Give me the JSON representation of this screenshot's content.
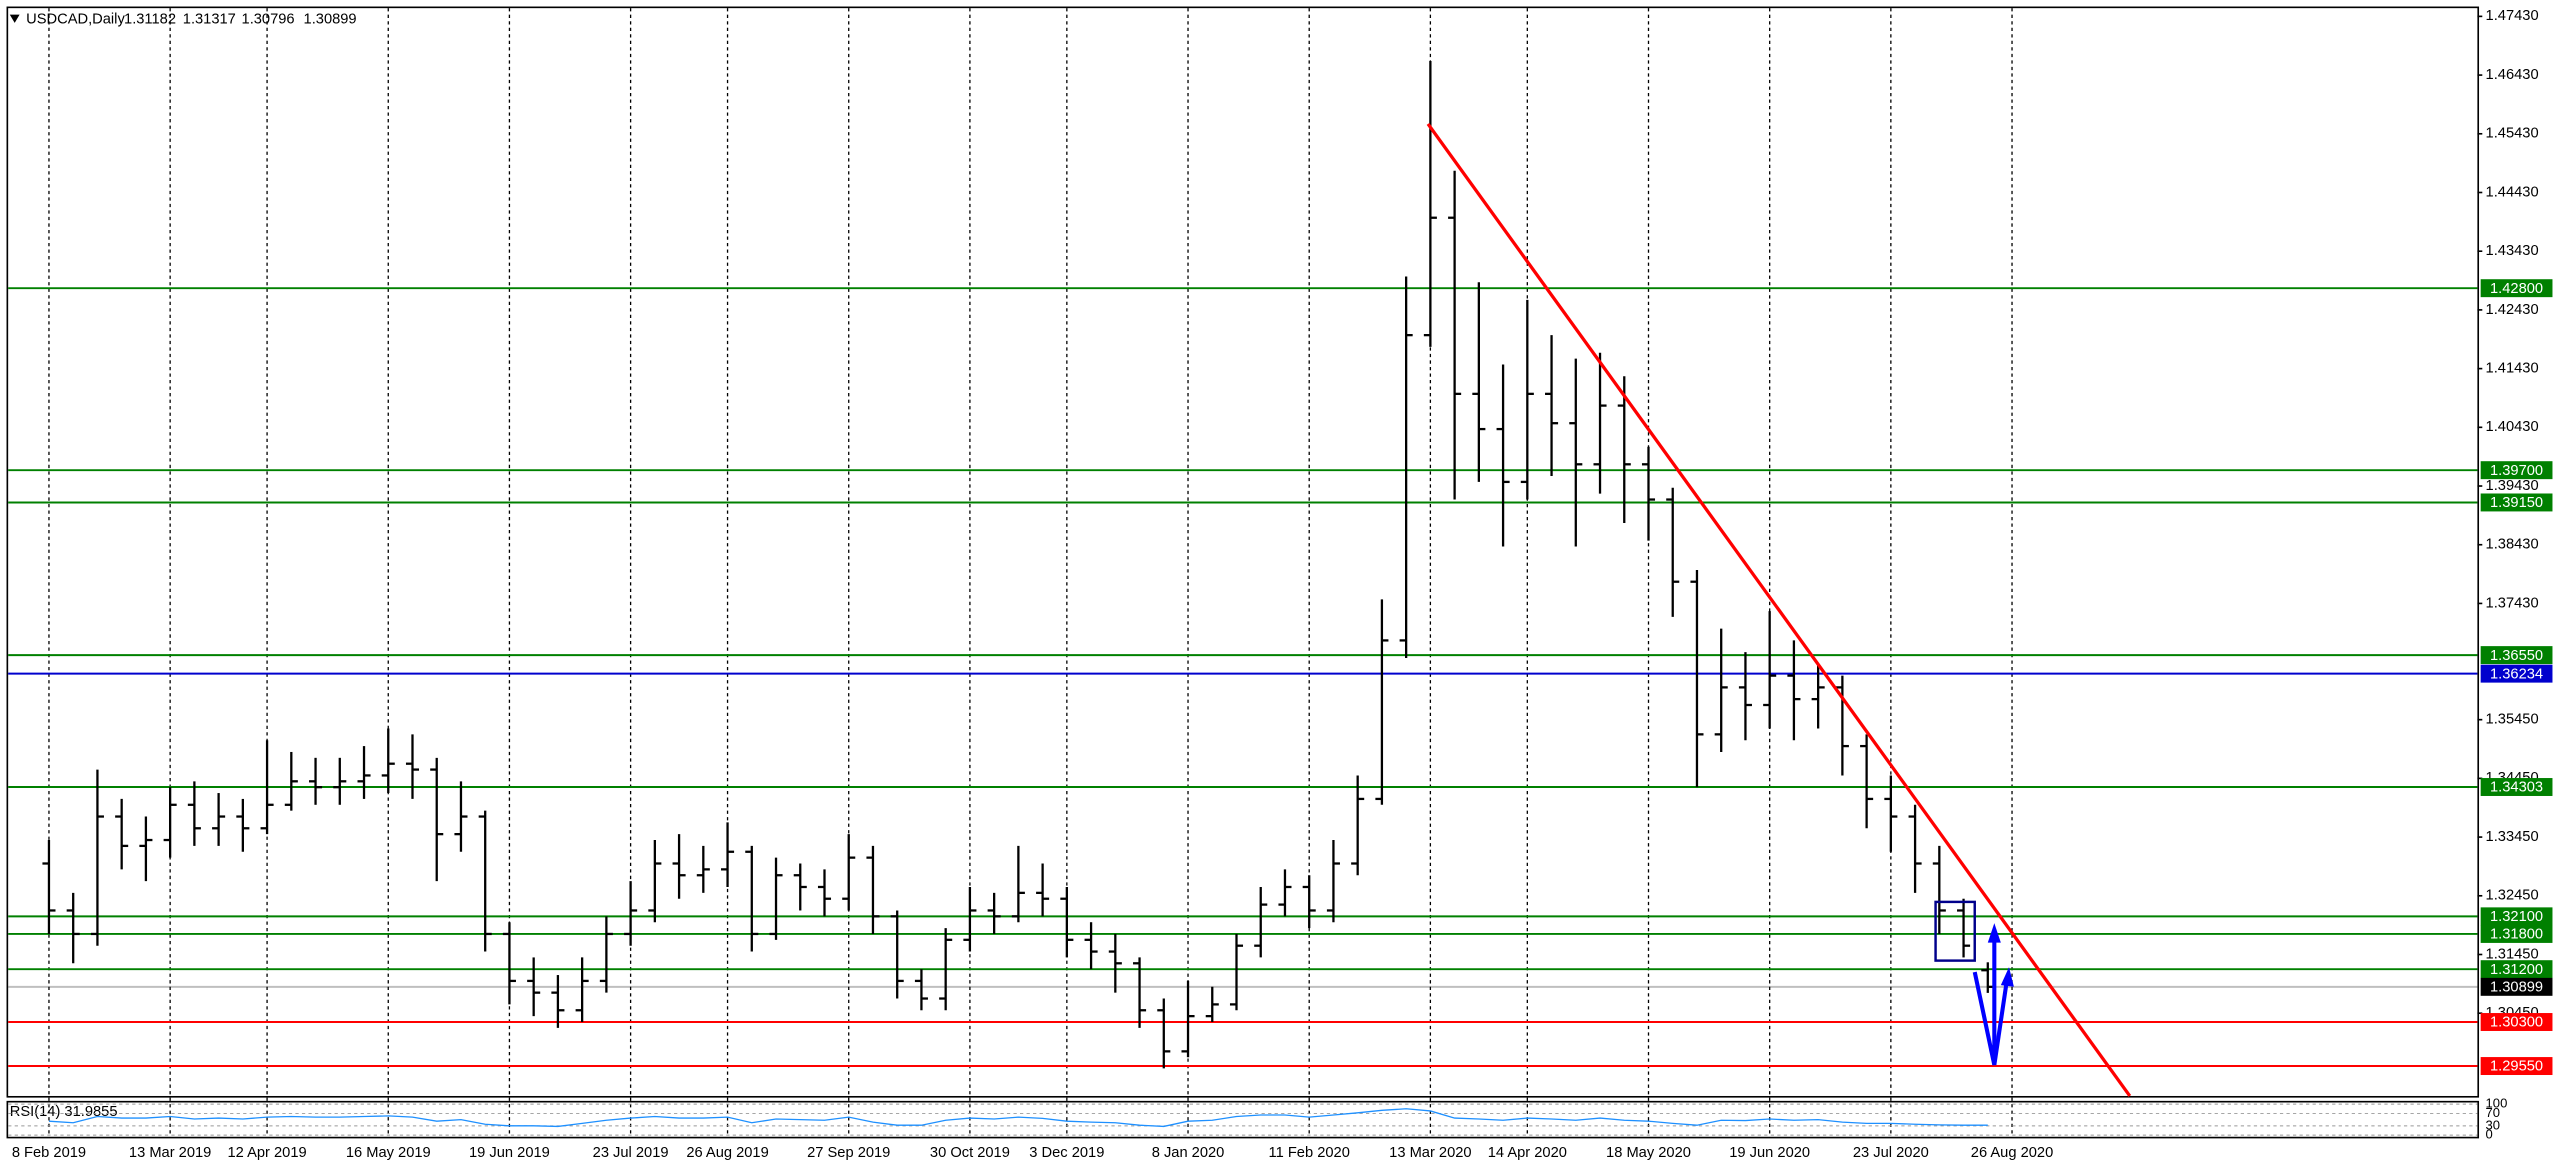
{
  "chart_data": {
    "type": "ohlc",
    "title": "USDCAD,Daily",
    "quote": [
      1.31182,
      1.31317,
      1.30796,
      1.30899
    ],
    "categories": [
      "8 Feb 2019",
      null,
      null,
      null,
      null,
      "13 Mar 2019",
      null,
      null,
      null,
      "12 Apr 2019",
      null,
      null,
      null,
      null,
      "16 May 2019",
      null,
      null,
      null,
      null,
      "19 Jun 2019",
      null,
      null,
      null,
      null,
      "23 Jul 2019",
      null,
      null,
      null,
      "26 Aug 2019",
      null,
      null,
      null,
      null,
      "27 Sep 2019",
      null,
      null,
      null,
      null,
      "30 Oct 2019",
      null,
      null,
      null,
      "3 Dec 2019",
      null,
      null,
      null,
      null,
      "8 Jan 2020",
      null,
      null,
      null,
      null,
      "11 Feb 2020",
      null,
      null,
      null,
      null,
      "13 Mar 2020",
      null,
      null,
      null,
      "14 Apr 2020",
      null,
      null,
      null,
      null,
      "18 May 2020",
      null,
      null,
      null,
      null,
      "19 Jun 2020",
      null,
      null,
      null,
      null,
      "23 Jul 2020",
      null,
      null,
      null,
      null,
      "26 Aug 2020"
    ],
    "open": [
      1.33,
      1.322,
      1.318,
      1.338,
      1.333,
      1.334,
      1.34,
      1.336,
      1.338,
      1.336,
      1.34,
      1.344,
      1.343,
      1.344,
      1.345,
      1.347,
      1.346,
      1.335,
      1.338,
      1.318,
      1.31,
      1.308,
      1.305,
      1.31,
      1.318,
      1.322,
      1.33,
      1.328,
      1.329,
      1.332,
      1.318,
      1.328,
      1.326,
      1.324,
      1.331,
      1.321,
      1.31,
      1.307,
      1.317,
      1.322,
      1.321,
      1.325,
      1.324,
      1.317,
      1.315,
      1.313,
      1.305,
      1.298,
      1.304,
      1.306,
      1.316,
      1.323,
      1.326,
      1.322,
      1.33,
      1.341,
      1.368,
      1.42,
      1.44,
      1.41,
      1.404,
      1.395,
      1.41,
      1.405,
      1.398,
      1.408,
      1.398,
      1.392,
      1.378,
      1.352,
      1.36,
      1.357,
      1.362,
      1.358,
      1.36,
      1.35,
      1.341,
      1.338,
      1.33,
      1.322,
      1.31182,
      null
    ],
    "high": [
      1.334,
      1.325,
      1.346,
      1.341,
      1.338,
      1.343,
      1.344,
      1.342,
      1.341,
      1.351,
      1.349,
      1.348,
      1.348,
      1.35,
      1.353,
      1.352,
      1.348,
      1.344,
      1.339,
      1.32,
      1.314,
      1.311,
      1.314,
      1.321,
      1.327,
      1.334,
      1.335,
      1.333,
      1.337,
      1.333,
      1.331,
      1.33,
      1.329,
      1.335,
      1.333,
      1.322,
      1.312,
      1.319,
      1.326,
      1.325,
      1.333,
      1.33,
      1.326,
      1.32,
      1.318,
      1.314,
      1.307,
      1.31,
      1.309,
      1.318,
      1.326,
      1.329,
      1.328,
      1.334,
      1.345,
      1.375,
      1.43,
      1.4667,
      1.448,
      1.429,
      1.415,
      1.426,
      1.42,
      1.416,
      1.417,
      1.413,
      1.401,
      1.394,
      1.38,
      1.37,
      1.366,
      1.373,
      1.368,
      1.364,
      1.362,
      1.352,
      1.345,
      1.34,
      1.333,
      1.324,
      1.31317,
      null
    ],
    "low": [
      1.318,
      1.313,
      1.316,
      1.329,
      1.327,
      1.331,
      1.333,
      1.333,
      1.332,
      1.335,
      1.339,
      1.34,
      1.34,
      1.341,
      1.342,
      1.341,
      1.327,
      1.332,
      1.315,
      1.306,
      1.304,
      1.302,
      1.303,
      1.308,
      1.316,
      1.32,
      1.324,
      1.325,
      1.326,
      1.315,
      1.317,
      1.322,
      1.321,
      1.322,
      1.318,
      1.307,
      1.305,
      1.305,
      1.315,
      1.318,
      1.32,
      1.321,
      1.314,
      1.312,
      1.308,
      1.302,
      1.2951,
      1.297,
      1.303,
      1.305,
      1.314,
      1.321,
      1.319,
      1.32,
      1.328,
      1.34,
      1.365,
      1.418,
      1.392,
      1.395,
      1.384,
      1.392,
      1.396,
      1.384,
      1.393,
      1.388,
      1.385,
      1.372,
      1.343,
      1.349,
      1.351,
      1.353,
      1.351,
      1.353,
      1.345,
      1.336,
      1.332,
      1.325,
      1.318,
      1.314,
      1.30796,
      null
    ],
    "close": [
      1.322,
      1.318,
      1.338,
      1.333,
      1.334,
      1.34,
      1.336,
      1.338,
      1.336,
      1.34,
      1.344,
      1.343,
      1.344,
      1.345,
      1.347,
      1.346,
      1.335,
      1.338,
      1.318,
      1.31,
      1.308,
      1.305,
      1.31,
      1.318,
      1.322,
      1.33,
      1.328,
      1.329,
      1.332,
      1.318,
      1.328,
      1.326,
      1.324,
      1.331,
      1.321,
      1.31,
      1.307,
      1.317,
      1.322,
      1.321,
      1.325,
      1.324,
      1.317,
      1.315,
      1.313,
      1.305,
      1.298,
      1.304,
      1.306,
      1.316,
      1.323,
      1.326,
      1.322,
      1.33,
      1.341,
      1.368,
      1.42,
      1.44,
      1.41,
      1.404,
      1.395,
      1.41,
      1.405,
      1.398,
      1.408,
      1.398,
      1.392,
      1.378,
      1.352,
      1.36,
      1.357,
      1.362,
      1.358,
      1.36,
      1.35,
      1.341,
      1.338,
      1.33,
      1.322,
      1.316,
      1.30899,
      null
    ],
    "color": "#000000",
    "ylim": [
      1.2904,
      1.4757
    ],
    "yticks": [
      {
        "value": 1.4743,
        "label": "1.47430"
      },
      {
        "value": 1.4643,
        "label": "1.46430"
      },
      {
        "value": 1.4543,
        "label": "1.45430"
      },
      {
        "value": 1.4443,
        "label": "1.44430"
      },
      {
        "value": 1.4343,
        "label": "1.43430"
      },
      {
        "value": 1.4243,
        "label": "1.42430"
      },
      {
        "value": 1.4143,
        "label": "1.41430"
      },
      {
        "value": 1.4043,
        "label": "1.40430"
      },
      {
        "value": 1.3943,
        "label": "1.39430"
      },
      {
        "value": 1.3843,
        "label": "1.38430"
      },
      {
        "value": 1.3743,
        "label": "1.37430"
      },
      {
        "value": 1.3545,
        "label": "1.35450"
      },
      {
        "value": 1.3445,
        "label": "1.34450"
      },
      {
        "value": 1.3345,
        "label": "1.33450"
      },
      {
        "value": 1.3245,
        "label": "1.32450"
      },
      {
        "value": 1.3145,
        "label": "1.31450"
      },
      {
        "value": 1.3045,
        "label": "1.30450"
      }
    ],
    "grid": true,
    "levels": [
      {
        "value": 1.428,
        "label": "1.42800",
        "color": "#008000"
      },
      {
        "value": 1.397,
        "label": "1.39700",
        "color": "#008000"
      },
      {
        "value": 1.3915,
        "label": "1.39150",
        "color": "#008000"
      },
      {
        "value": 1.3655,
        "label": "1.36550",
        "color": "#008000"
      },
      {
        "value": 1.36234,
        "label": "1.36234",
        "color": "#0000cd"
      },
      {
        "value": 1.34303,
        "label": "1.34303",
        "color": "#008000"
      },
      {
        "value": 1.321,
        "label": "1.32100",
        "color": "#008000"
      },
      {
        "value": 1.318,
        "label": "1.31800",
        "color": "#008000"
      },
      {
        "value": 1.312,
        "label": "1.31200",
        "color": "#008000"
      },
      {
        "value": 1.30899,
        "label": "1.30899",
        "color": "#000000"
      },
      {
        "value": 1.303,
        "label": "1.30300",
        "color": "#ff0000"
      },
      {
        "value": 1.2955,
        "label": "1.29550",
        "color": "#ff0000"
      }
    ],
    "rsi": {
      "title": "RSI(14) 31.9855",
      "color": "#1e90ff",
      "ylim": [
        0,
        100
      ],
      "yticks": [
        100,
        70,
        30,
        0
      ],
      "values": [
        45,
        40,
        60,
        55,
        55,
        60,
        52,
        55,
        52,
        58,
        60,
        58,
        58,
        60,
        62,
        58,
        45,
        50,
        35,
        30,
        30,
        28,
        38,
        48,
        55,
        60,
        55,
        55,
        58,
        40,
        52,
        50,
        48,
        58,
        42,
        32,
        32,
        48,
        55,
        52,
        58,
        54,
        45,
        42,
        40,
        32,
        28,
        45,
        48,
        60,
        65,
        65,
        58,
        65,
        72,
        80,
        85,
        78,
        55,
        52,
        48,
        55,
        52,
        48,
        55,
        48,
        45,
        38,
        32,
        48,
        47,
        52,
        48,
        50,
        42,
        38,
        38,
        35,
        33,
        32,
        31.9855,
        null
      ]
    }
  }
}
